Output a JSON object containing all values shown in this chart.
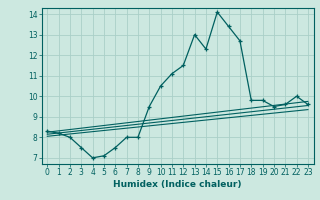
{
  "xlabel": "Humidex (Indice chaleur)",
  "background_color": "#cce8e0",
  "line_color": "#006060",
  "grid_color": "#aacfc8",
  "xlim": [
    -0.5,
    23.5
  ],
  "ylim": [
    6.7,
    14.3
  ],
  "xticks": [
    0,
    1,
    2,
    3,
    4,
    5,
    6,
    7,
    8,
    9,
    10,
    11,
    12,
    13,
    14,
    15,
    16,
    17,
    18,
    19,
    20,
    21,
    22,
    23
  ],
  "yticks": [
    7,
    8,
    9,
    10,
    11,
    12,
    13,
    14
  ],
  "line1_x": [
    0,
    1,
    2,
    3,
    4,
    5,
    6,
    7,
    8,
    9,
    10,
    11,
    12,
    13,
    14,
    15,
    16,
    17,
    18,
    19,
    20,
    21,
    22,
    23
  ],
  "line1_y": [
    8.3,
    8.2,
    8.0,
    7.5,
    7.0,
    7.1,
    7.5,
    8.0,
    8.0,
    9.5,
    10.5,
    11.1,
    11.5,
    13.0,
    12.3,
    14.1,
    13.4,
    12.7,
    9.8,
    9.8,
    9.5,
    9.6,
    10.0,
    9.6
  ],
  "line2_x": [
    0,
    23
  ],
  "line2_y": [
    8.25,
    9.75
  ],
  "line3_x": [
    0,
    23
  ],
  "line3_y": [
    8.15,
    9.55
  ],
  "line4_x": [
    0,
    23
  ],
  "line4_y": [
    8.05,
    9.35
  ]
}
